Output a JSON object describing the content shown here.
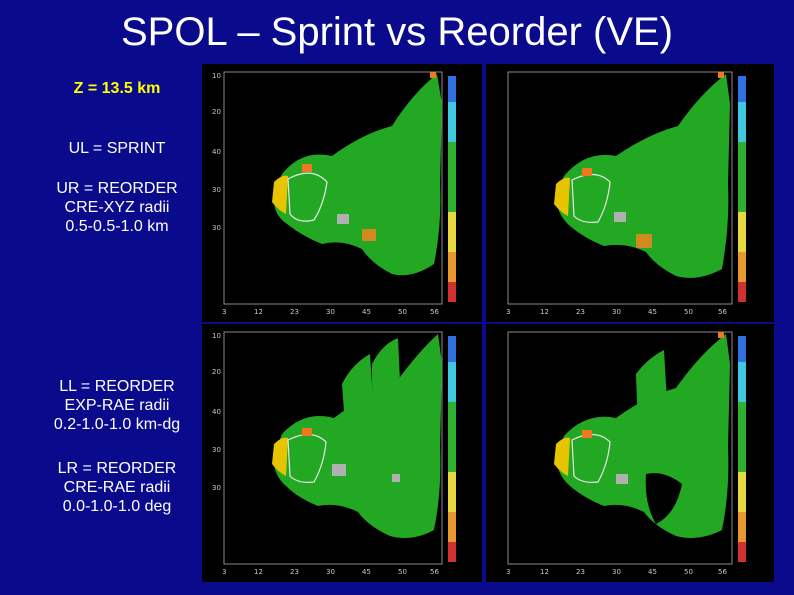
{
  "title": "SPOL – Sprint vs Reorder (VE)",
  "captions": {
    "z": "Z = 13.5 km",
    "ul": "UL = SPRINT",
    "ur": "UR = REORDER\nCRE-XYZ radii\n0.5-0.5-1.0 km",
    "ll": "LL = REORDER\nEXP-RAE radii\n0.2-1.0-1.0 km-dg",
    "lr": "LR = REORDER\nCRE-RAE radii\n0.0-1.0-1.0 deg"
  },
  "colors": {
    "background": "#0a0a8c",
    "title": "#ffffff",
    "z_caption": "#ffff00",
    "field_green": "#22a822",
    "contour": "#e8e8e8"
  },
  "panels": [
    {
      "id": "ul"
    },
    {
      "id": "ur"
    },
    {
      "id": "ll"
    },
    {
      "id": "lr"
    }
  ]
}
